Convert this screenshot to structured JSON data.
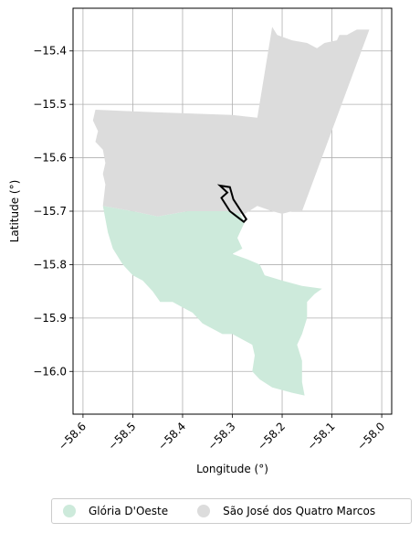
{
  "chart_data": {
    "type": "map",
    "title": "",
    "xlabel": "Longitude (°)",
    "ylabel": "Latitude (°)",
    "xlim": [
      -58.62,
      -57.98
    ],
    "ylim": [
      -16.08,
      -15.32
    ],
    "xticks": [
      -58.6,
      -58.5,
      -58.4,
      -58.3,
      -58.2,
      -58.1,
      -58.0
    ],
    "xtick_labels": [
      "−58.6",
      "−58.5",
      "−58.4",
      "−58.3",
      "−58.2",
      "−58.1",
      "−58.0"
    ],
    "yticks": [
      -15.4,
      -15.5,
      -15.6,
      -15.7,
      -15.8,
      -15.9,
      -16.0
    ],
    "ytick_labels": [
      "−15.4",
      "−15.5",
      "−15.6",
      "−15.7",
      "−15.8",
      "−15.9",
      "−16.0"
    ],
    "grid": true,
    "legend_position": "bottom",
    "series": [
      {
        "name": "Glória D'Oeste",
        "color": "#cdeadb",
        "polygon": [
          [
            -58.56,
            -15.69
          ],
          [
            -58.5,
            -15.7
          ],
          [
            -58.45,
            -15.71
          ],
          [
            -58.39,
            -15.7
          ],
          [
            -58.34,
            -15.7
          ],
          [
            -58.31,
            -15.7
          ],
          [
            -58.285,
            -15.705
          ],
          [
            -58.275,
            -15.72
          ],
          [
            -58.29,
            -15.75
          ],
          [
            -58.28,
            -15.77
          ],
          [
            -58.3,
            -15.78
          ],
          [
            -58.27,
            -15.79
          ],
          [
            -58.245,
            -15.8
          ],
          [
            -58.235,
            -15.82
          ],
          [
            -58.2,
            -15.83
          ],
          [
            -58.16,
            -15.84
          ],
          [
            -58.12,
            -15.845
          ],
          [
            -58.135,
            -15.855
          ],
          [
            -58.15,
            -15.87
          ],
          [
            -58.15,
            -15.9
          ],
          [
            -58.16,
            -15.93
          ],
          [
            -58.17,
            -15.95
          ],
          [
            -58.16,
            -15.98
          ],
          [
            -58.16,
            -16.02
          ],
          [
            -58.155,
            -16.045
          ],
          [
            -58.18,
            -16.04
          ],
          [
            -58.22,
            -16.03
          ],
          [
            -58.245,
            -16.015
          ],
          [
            -58.26,
            -16.0
          ],
          [
            -58.255,
            -15.97
          ],
          [
            -58.26,
            -15.95
          ],
          [
            -58.28,
            -15.94
          ],
          [
            -58.3,
            -15.93
          ],
          [
            -58.32,
            -15.93
          ],
          [
            -58.36,
            -15.91
          ],
          [
            -58.38,
            -15.89
          ],
          [
            -58.4,
            -15.88
          ],
          [
            -58.42,
            -15.87
          ],
          [
            -58.445,
            -15.87
          ],
          [
            -58.46,
            -15.85
          ],
          [
            -58.48,
            -15.83
          ],
          [
            -58.5,
            -15.82
          ],
          [
            -58.52,
            -15.8
          ],
          [
            -58.54,
            -15.77
          ],
          [
            -58.55,
            -15.74
          ]
        ]
      },
      {
        "name": "São José dos Quatro Marcos",
        "color": "#dcdcdc",
        "polygon": [
          [
            -58.58,
            -15.53
          ],
          [
            -58.575,
            -15.51
          ],
          [
            -58.45,
            -15.515
          ],
          [
            -58.3,
            -15.52
          ],
          [
            -58.25,
            -15.525
          ],
          [
            -58.22,
            -15.355
          ],
          [
            -58.21,
            -15.37
          ],
          [
            -58.18,
            -15.38
          ],
          [
            -58.15,
            -15.385
          ],
          [
            -58.13,
            -15.395
          ],
          [
            -58.115,
            -15.385
          ],
          [
            -58.09,
            -15.38
          ],
          [
            -58.085,
            -15.37
          ],
          [
            -58.07,
            -15.37
          ],
          [
            -58.05,
            -15.36
          ],
          [
            -58.025,
            -15.36
          ],
          [
            -58.16,
            -15.7
          ],
          [
            -58.18,
            -15.7
          ],
          [
            -58.2,
            -15.705
          ],
          [
            -58.22,
            -15.7
          ],
          [
            -58.25,
            -15.69
          ],
          [
            -58.275,
            -15.705
          ],
          [
            -58.285,
            -15.705
          ],
          [
            -58.31,
            -15.7
          ],
          [
            -58.34,
            -15.7
          ],
          [
            -58.39,
            -15.7
          ],
          [
            -58.45,
            -15.71
          ],
          [
            -58.5,
            -15.7
          ],
          [
            -58.56,
            -15.69
          ],
          [
            -58.555,
            -15.65
          ],
          [
            -58.56,
            -15.63
          ],
          [
            -58.555,
            -15.61
          ],
          [
            -58.56,
            -15.585
          ],
          [
            -58.575,
            -15.57
          ],
          [
            -58.57,
            -15.55
          ]
        ]
      }
    ],
    "highlight_outline": {
      "color": "#000000",
      "polygon": [
        [
          -58.325,
          -15.652
        ],
        [
          -58.305,
          -15.655
        ],
        [
          -58.298,
          -15.678
        ],
        [
          -58.272,
          -15.715
        ],
        [
          -58.277,
          -15.72
        ],
        [
          -58.305,
          -15.7
        ],
        [
          -58.322,
          -15.675
        ],
        [
          -58.31,
          -15.665
        ]
      ]
    }
  }
}
